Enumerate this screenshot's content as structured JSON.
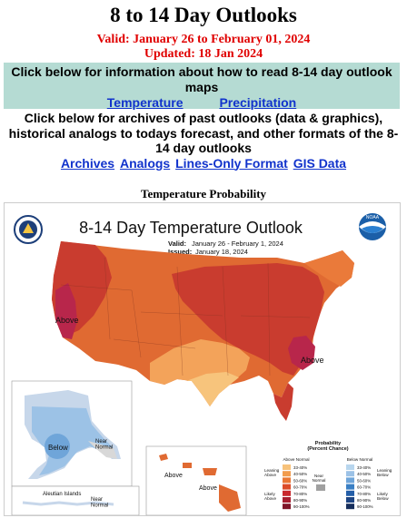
{
  "header": {
    "title": "8 to 14 Day Outlooks",
    "valid": "Valid: January 26 to February 01, 2024",
    "updated": "Updated: 18 Jan 2024"
  },
  "info_box": {
    "text": "Click below for information about how to read 8-14 day outlook maps",
    "links": [
      "Temperature",
      "Precipitation"
    ]
  },
  "archives": {
    "text": "Click below for archives of past outlooks (data & graphics), historical analogs to todays forecast, and other formats of the 8-14 day outlooks",
    "links": [
      "Archives",
      "Analogs",
      "Lines-Only Format",
      "GIS Data"
    ]
  },
  "section_title": "Temperature Probability",
  "map": {
    "title": "8-14 Day Temperature Outlook",
    "valid_label": "Valid:",
    "valid_value": "January 26 - February 1, 2024",
    "issued_label": "Issued:",
    "issued_value": "January 18, 2024",
    "noaa_text": "NOAA",
    "labels": {
      "above_west": "Above",
      "above_east": "Above",
      "below_alaska": "Below",
      "near_normal_alaska": "Near\nNormal",
      "aleutian": "Aleutian Islands",
      "near_normal_aleutian": "Near\nNormal",
      "above_hawaii_1": "Above",
      "above_hawaii_2": "Above"
    },
    "legend": {
      "title": "Probability\n(Percent Chance)",
      "above_header": "Above Normal",
      "below_header": "Below Normal",
      "near_label": "Near\nNormal",
      "leaning_above": "Leaning\nAbove",
      "likely_above": "Likely\nAbove",
      "leaning_below": "Leaning\nBelow",
      "likely_below": "Likely\nBelow",
      "ranges": [
        "33-40%",
        "40-50%",
        "50-60%",
        "60-70%",
        "70-80%",
        "80-90%",
        "90-100%"
      ],
      "above_colors": [
        "#f7c27a",
        "#f29c4d",
        "#ea7734",
        "#dc4b28",
        "#c9282d",
        "#a71d2e",
        "#7f1528"
      ],
      "below_colors": [
        "#b8d6ee",
        "#9cc2e6",
        "#6fa5d9",
        "#3a7fc4",
        "#245ea8",
        "#1d4483",
        "#162e5c"
      ],
      "near_color": "#a0a0a0"
    }
  }
}
